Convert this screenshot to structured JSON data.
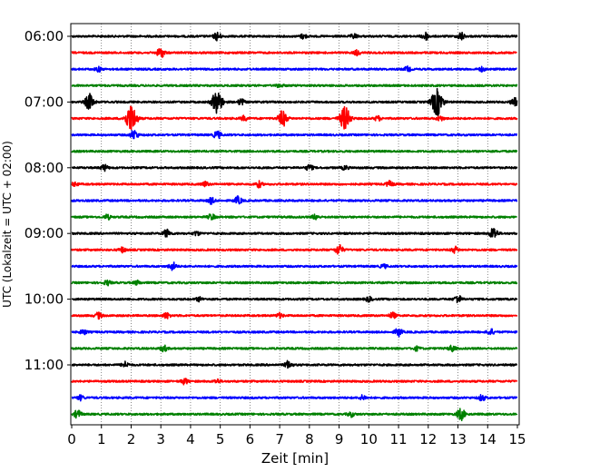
{
  "chart_data": {
    "type": "line",
    "title": "",
    "xlabel": "Zeit  [min]",
    "ylabel": "UTC (Lokalzeit = UTC + 02:00)",
    "xlim": [
      0,
      15
    ],
    "x_ticks": [
      "0",
      "1",
      "2",
      "3",
      "4",
      "5",
      "6",
      "7",
      "8",
      "9",
      "10",
      "11",
      "12",
      "13",
      "14",
      "15"
    ],
    "y_tick_labels": [
      "06:00",
      "07:00",
      "08:00",
      "09:00",
      "10:00",
      "11:00"
    ],
    "y_tick_row_index": [
      0,
      4,
      8,
      12,
      16,
      20
    ],
    "grid": "vertical dotted at each minute",
    "colors": [
      "#000000",
      "#ff0000",
      "#0000ff",
      "#008000"
    ],
    "rows": [
      {
        "start": "06:00",
        "color": "#000000",
        "bursts": [
          [
            4.9,
            2
          ],
          [
            7.8,
            1.2
          ],
          [
            9.5,
            1.2
          ],
          [
            11.9,
            2
          ],
          [
            13.1,
            2
          ]
        ]
      },
      {
        "start": "06:15",
        "color": "#ff0000",
        "bursts": [
          [
            3.0,
            2.5
          ],
          [
            9.6,
            1.2
          ]
        ]
      },
      {
        "start": "06:30",
        "color": "#0000ff",
        "bursts": [
          [
            0.9,
            1.2
          ],
          [
            11.3,
            1.2
          ],
          [
            13.8,
            1
          ]
        ]
      },
      {
        "start": "06:45",
        "color": "#008000",
        "bursts": [
          [
            7.0,
            1
          ]
        ]
      },
      {
        "start": "07:00",
        "color": "#000000",
        "bursts": [
          [
            0.6,
            4
          ],
          [
            4.9,
            6
          ],
          [
            5.7,
            1.5
          ],
          [
            12.3,
            7
          ],
          [
            14.9,
            2
          ]
        ]
      },
      {
        "start": "07:15",
        "color": "#ff0000",
        "bursts": [
          [
            2.0,
            7
          ],
          [
            5.8,
            1.2
          ],
          [
            7.1,
            4
          ],
          [
            9.2,
            6
          ],
          [
            10.3,
            1.2
          ],
          [
            12.4,
            1.2
          ]
        ]
      },
      {
        "start": "07:30",
        "color": "#0000ff",
        "bursts": [
          [
            2.1,
            2.5
          ],
          [
            4.9,
            2
          ]
        ]
      },
      {
        "start": "07:45",
        "color": "#008000",
        "bursts": []
      },
      {
        "start": "08:00",
        "color": "#000000",
        "bursts": [
          [
            1.1,
            1.5
          ],
          [
            8.0,
            1.5
          ],
          [
            9.2,
            1
          ]
        ]
      },
      {
        "start": "08:15",
        "color": "#ff0000",
        "bursts": [
          [
            0.1,
            1
          ],
          [
            4.5,
            1.2
          ],
          [
            6.3,
            1.5
          ],
          [
            10.7,
            1.5
          ]
        ]
      },
      {
        "start": "08:30",
        "color": "#0000ff",
        "bursts": [
          [
            4.7,
            1.5
          ],
          [
            5.6,
            2
          ]
        ]
      },
      {
        "start": "08:45",
        "color": "#008000",
        "bursts": [
          [
            1.2,
            1.2
          ],
          [
            4.7,
            1.5
          ],
          [
            8.2,
            1.2
          ]
        ]
      },
      {
        "start": "09:00",
        "color": "#000000",
        "bursts": [
          [
            3.2,
            2
          ],
          [
            4.2,
            1
          ],
          [
            14.2,
            3
          ]
        ]
      },
      {
        "start": "09:15",
        "color": "#ff0000",
        "bursts": [
          [
            1.7,
            1.2
          ],
          [
            9.0,
            2.5
          ],
          [
            12.9,
            1.5
          ]
        ]
      },
      {
        "start": "09:30",
        "color": "#0000ff",
        "bursts": [
          [
            3.4,
            2
          ],
          [
            10.5,
            1
          ]
        ]
      },
      {
        "start": "09:45",
        "color": "#008000",
        "bursts": [
          [
            1.2,
            1.2
          ],
          [
            2.2,
            1
          ]
        ]
      },
      {
        "start": "10:00",
        "color": "#000000",
        "bursts": [
          [
            4.3,
            1
          ],
          [
            10.0,
            1.2
          ],
          [
            13.0,
            2
          ]
        ]
      },
      {
        "start": "10:15",
        "color": "#ff0000",
        "bursts": [
          [
            0.9,
            1.5
          ],
          [
            3.2,
            1.5
          ],
          [
            7.0,
            1.2
          ],
          [
            10.8,
            1.5
          ]
        ]
      },
      {
        "start": "10:30",
        "color": "#0000ff",
        "bursts": [
          [
            0.4,
            1.2
          ],
          [
            11.0,
            2
          ],
          [
            14.1,
            1.5
          ]
        ]
      },
      {
        "start": "10:45",
        "color": "#008000",
        "bursts": [
          [
            3.1,
            1.5
          ],
          [
            11.6,
            1
          ],
          [
            12.8,
            1.5
          ]
        ]
      },
      {
        "start": "11:00",
        "color": "#000000",
        "bursts": [
          [
            1.8,
            1.5
          ],
          [
            7.3,
            2
          ]
        ]
      },
      {
        "start": "11:15",
        "color": "#ff0000",
        "bursts": [
          [
            3.8,
            1.5
          ],
          [
            4.9,
            1
          ]
        ]
      },
      {
        "start": "11:30",
        "color": "#0000ff",
        "bursts": [
          [
            0.3,
            1.2
          ],
          [
            9.8,
            1.2
          ],
          [
            13.8,
            1.5
          ]
        ]
      },
      {
        "start": "11:45",
        "color": "#008000",
        "bursts": [
          [
            0.2,
            2
          ],
          [
            9.4,
            1.2
          ],
          [
            13.1,
            3
          ]
        ]
      }
    ]
  }
}
